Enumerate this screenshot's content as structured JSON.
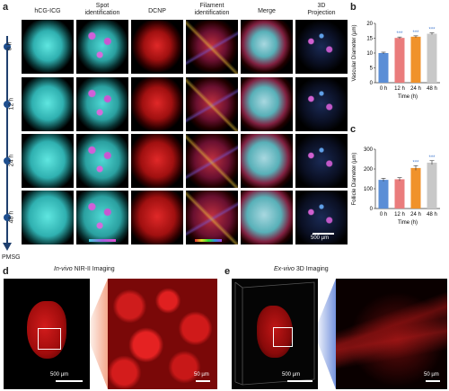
{
  "panels": {
    "a": "a",
    "b": "b",
    "c": "c",
    "d": "d",
    "e": "e"
  },
  "columns": [
    "hCG-ICG",
    "Spot\nidentification",
    "DCNP",
    "Filament\nidentification",
    "Merge",
    "3D\nProjection"
  ],
  "timepoints": [
    "0 h",
    "12 h",
    "24 h",
    "48 h"
  ],
  "axis_bottom_label": "PMSG",
  "scale_a": "500 µm",
  "panel_d": {
    "title_italic": "In-vivo",
    "title_rest": " NIR-II Imaging",
    "scale_left": "500 µm",
    "scale_right": "50 µm"
  },
  "panel_e": {
    "title_italic": "Ex-vivo",
    "title_rest": " 3D Imaging",
    "scale_left": "500 µm",
    "scale_right": "50 µm"
  },
  "colors": {
    "blue": "#5b8ed6",
    "red": "#ea7c7c",
    "orange": "#f0922b",
    "gray": "#c8c8c8",
    "sig": "#4a7fd0"
  },
  "chart_data": [
    {
      "type": "bar",
      "id": "b",
      "categories": [
        "0 h",
        "12 h",
        "24 h",
        "48 h"
      ],
      "values": [
        10,
        15.1,
        15.5,
        16.5
      ],
      "errors": [
        0.3,
        0.3,
        0.3,
        0.3
      ],
      "significance": [
        "",
        "***",
        "***",
        "***"
      ],
      "xlabel": "Time (h)",
      "ylabel": "Vascular Diameter (µm)",
      "ylim": [
        0,
        20
      ],
      "yticks": [
        0,
        5,
        10,
        15,
        20
      ]
    },
    {
      "type": "bar",
      "id": "c",
      "categories": [
        "0 h",
        "12 h",
        "24 h",
        "48 h"
      ],
      "values": [
        145,
        148,
        205,
        232
      ],
      "errors": [
        8,
        8,
        12,
        10
      ],
      "significance": [
        "",
        "",
        "***",
        "***"
      ],
      "xlabel": "Time (h)",
      "ylabel": "Follicle Diameter (µm)",
      "ylim": [
        0,
        300
      ],
      "yticks": [
        0,
        100,
        200,
        300
      ]
    }
  ]
}
